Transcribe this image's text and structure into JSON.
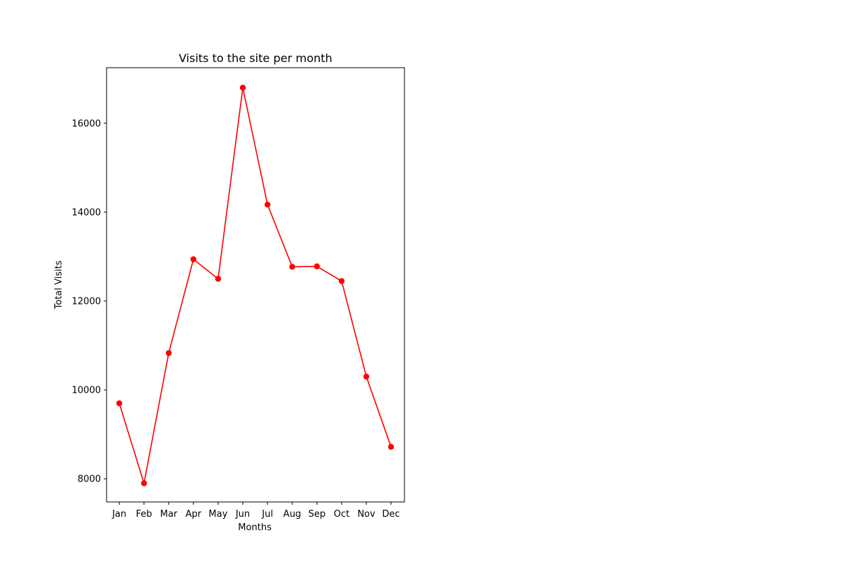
{
  "chart_data": {
    "type": "line",
    "title": "Visits to the site per month",
    "xlabel": "Months",
    "ylabel": "Total Visits",
    "categories": [
      "Jan",
      "Feb",
      "Mar",
      "Apr",
      "May",
      "Jun",
      "Jul",
      "Aug",
      "Sep",
      "Oct",
      "Nov",
      "Dec"
    ],
    "series": [
      {
        "values": [
          9700,
          7900,
          10830,
          12940,
          12500,
          16800,
          14170,
          12770,
          12780,
          12450,
          10300,
          8720
        ],
        "color": "#ff0000",
        "marker": "circle"
      }
    ],
    "ylim": [
      7480,
      17250
    ],
    "yticks": [
      8000,
      10000,
      12000,
      14000,
      16000
    ],
    "ytick_labels": [
      "8000",
      "10000",
      "12000",
      "14000",
      "16000"
    ],
    "grid": false,
    "legend": "none"
  }
}
